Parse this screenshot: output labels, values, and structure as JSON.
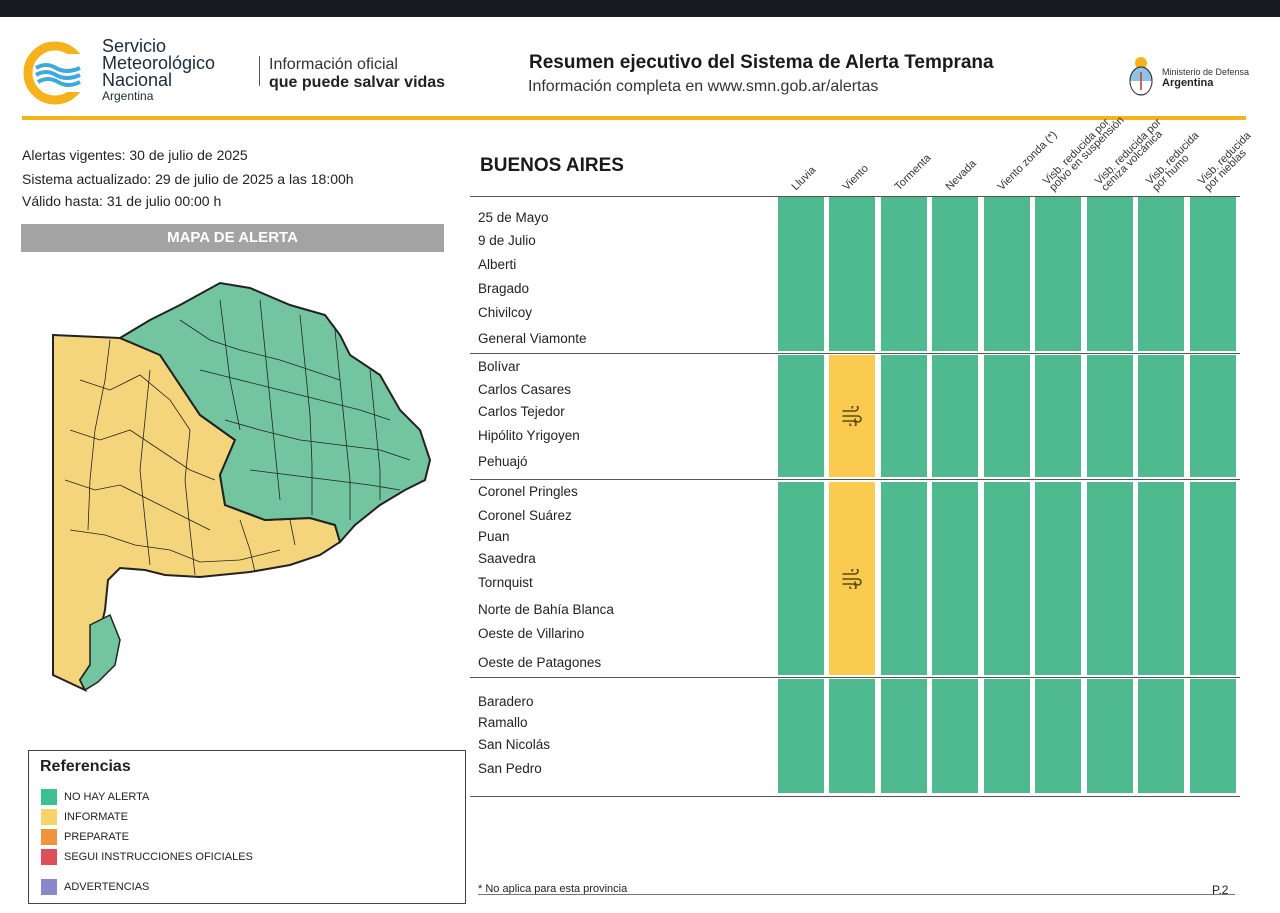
{
  "header": {
    "org_line1": "Servicio",
    "org_line2": "Meteorológico",
    "org_line3": "Nacional",
    "org_country": "Argentina",
    "slogan_line1": "Información oficial",
    "slogan_line2": "que puede salvar vidas",
    "title": "Resumen ejecutivo del Sistema de Alerta Temprana",
    "subtitle": "Información completa en www.smn.gob.ar/alertas",
    "ministry_line1": "Ministerio de Defensa",
    "ministry_line2": "Argentina"
  },
  "info": {
    "vigentes": "Alertas vigentes: 30 de julio de 2025",
    "actualizado": "Sistema actualizado: 29 de julio de 2025 a las 18:00h",
    "valido": "Válido hasta: 31 de julio 00:00 h"
  },
  "map": {
    "title": "MAPA DE ALERTA"
  },
  "references": {
    "title": "Referencias",
    "items": [
      {
        "label": "NO HAY ALERTA",
        "color": "#3dbf8e"
      },
      {
        "label": "INFORMATE",
        "color": "#f5d46c"
      },
      {
        "label": "PREPARATE",
        "color": "#f2923a"
      },
      {
        "label": "SEGUI INSTRUCCIONES OFICIALES",
        "color": "#dd4f5a"
      },
      {
        "label": "ADVERTENCIAS",
        "color": "#8b85c9"
      }
    ]
  },
  "table": {
    "province": "BUENOS AIRES",
    "columns": [
      {
        "line1": "Lluvia",
        "line2": ""
      },
      {
        "line1": "Viento",
        "line2": ""
      },
      {
        "line1": "Tormenta",
        "line2": ""
      },
      {
        "line1": "Nevada",
        "line2": ""
      },
      {
        "line1": "Viento zonda (*)",
        "line2": ""
      },
      {
        "line1": "Visb. reducida por",
        "line2": "polvo en suspensión"
      },
      {
        "line1": "Visb. reducida por",
        "line2": "ceniza volcánica"
      },
      {
        "line1": "Visb. reducida",
        "line2": "por humo"
      },
      {
        "line1": "Visb. reducida",
        "line2": "por nieblas"
      }
    ],
    "groups": [
      {
        "localities": [
          "25 de Mayo",
          "9 de Julio",
          "Alberti",
          "Bragado",
          "Chivilcoy",
          "General Viamonte"
        ],
        "levels": [
          "none",
          "none",
          "none",
          "none",
          "none",
          "none",
          "none",
          "none",
          "none"
        ],
        "icon_column": -1
      },
      {
        "localities": [
          "Bolívar",
          "Carlos Casares",
          "Carlos Tejedor",
          "Hipólito Yrigoyen",
          "Pehuajó"
        ],
        "levels": [
          "none",
          "informate",
          "none",
          "none",
          "none",
          "none",
          "none",
          "none",
          "none"
        ],
        "icon_column": 1,
        "icon": "wind-icon"
      },
      {
        "localities": [
          "Coronel Pringles",
          "Coronel Suárez",
          "Puan",
          "Saavedra",
          "Tornquist",
          "Norte de Bahía Blanca",
          "Oeste de Villarino",
          "Oeste de Patagones"
        ],
        "levels": [
          "none",
          "informate",
          "none",
          "none",
          "none",
          "none",
          "none",
          "none",
          "none"
        ],
        "icon_column": 1,
        "icon": "wind-icon"
      },
      {
        "localities": [
          "Baradero",
          "Ramallo",
          "San Nicolás",
          "San Pedro"
        ],
        "levels": [
          "none",
          "none",
          "none",
          "none",
          "none",
          "none",
          "none",
          "none",
          "none"
        ],
        "icon_column": -1
      }
    ],
    "level_colors": {
      "none": "#4fb98f",
      "informate": "#fbcb4f"
    }
  },
  "footer": {
    "note": "* No aplica para esta provincia",
    "page": "P.2"
  }
}
